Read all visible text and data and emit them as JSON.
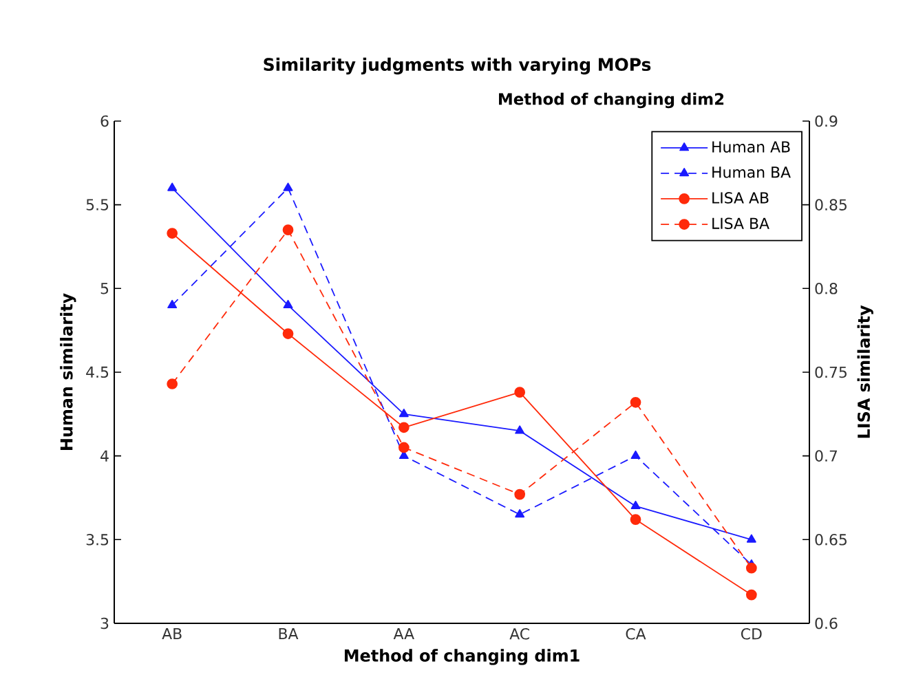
{
  "chart_data": {
    "type": "line",
    "title": "Similarity judgments with varying MOPs",
    "xlabel": "Method of changing dim1",
    "ylabel": "Human similarity",
    "y2label": "LISA similarity",
    "legend_title": "Method of changing dim2",
    "categories": [
      "AB",
      "BA",
      "AA",
      "AC",
      "CA",
      "CD"
    ],
    "series": [
      {
        "name": "Human AB",
        "color": "#1a1aff",
        "marker": "triangle",
        "line_style": "solid",
        "values": [
          5.6,
          4.9,
          4.25,
          4.15,
          3.7,
          3.5
        ]
      },
      {
        "name": "Human BA",
        "color": "#1a1aff",
        "marker": "triangle",
        "line_style": "dashed",
        "values": [
          4.9,
          5.6,
          4.0,
          3.65,
          4.0,
          3.35
        ]
      },
      {
        "name": "LISA AB",
        "color": "#ff2a0a",
        "marker": "circle",
        "line_style": "solid",
        "axis": "y2",
        "values": [
          0.833,
          0.773,
          0.717,
          0.738,
          0.662,
          0.617
        ]
      },
      {
        "name": "LISA BA",
        "color": "#ff2a0a",
        "marker": "circle",
        "line_style": "dashed",
        "axis": "y2",
        "values": [
          0.743,
          0.835,
          0.705,
          0.677,
          0.732,
          0.633
        ]
      }
    ],
    "ylim": [
      3,
      6
    ],
    "yticks": [
      3,
      3.5,
      4,
      4.5,
      5,
      5.5,
      6
    ],
    "y2lim": [
      0.6,
      0.9
    ],
    "y2ticks": [
      0.6,
      0.65,
      0.7,
      0.75,
      0.8,
      0.85,
      0.9
    ],
    "grid": false,
    "legend": "top right"
  }
}
